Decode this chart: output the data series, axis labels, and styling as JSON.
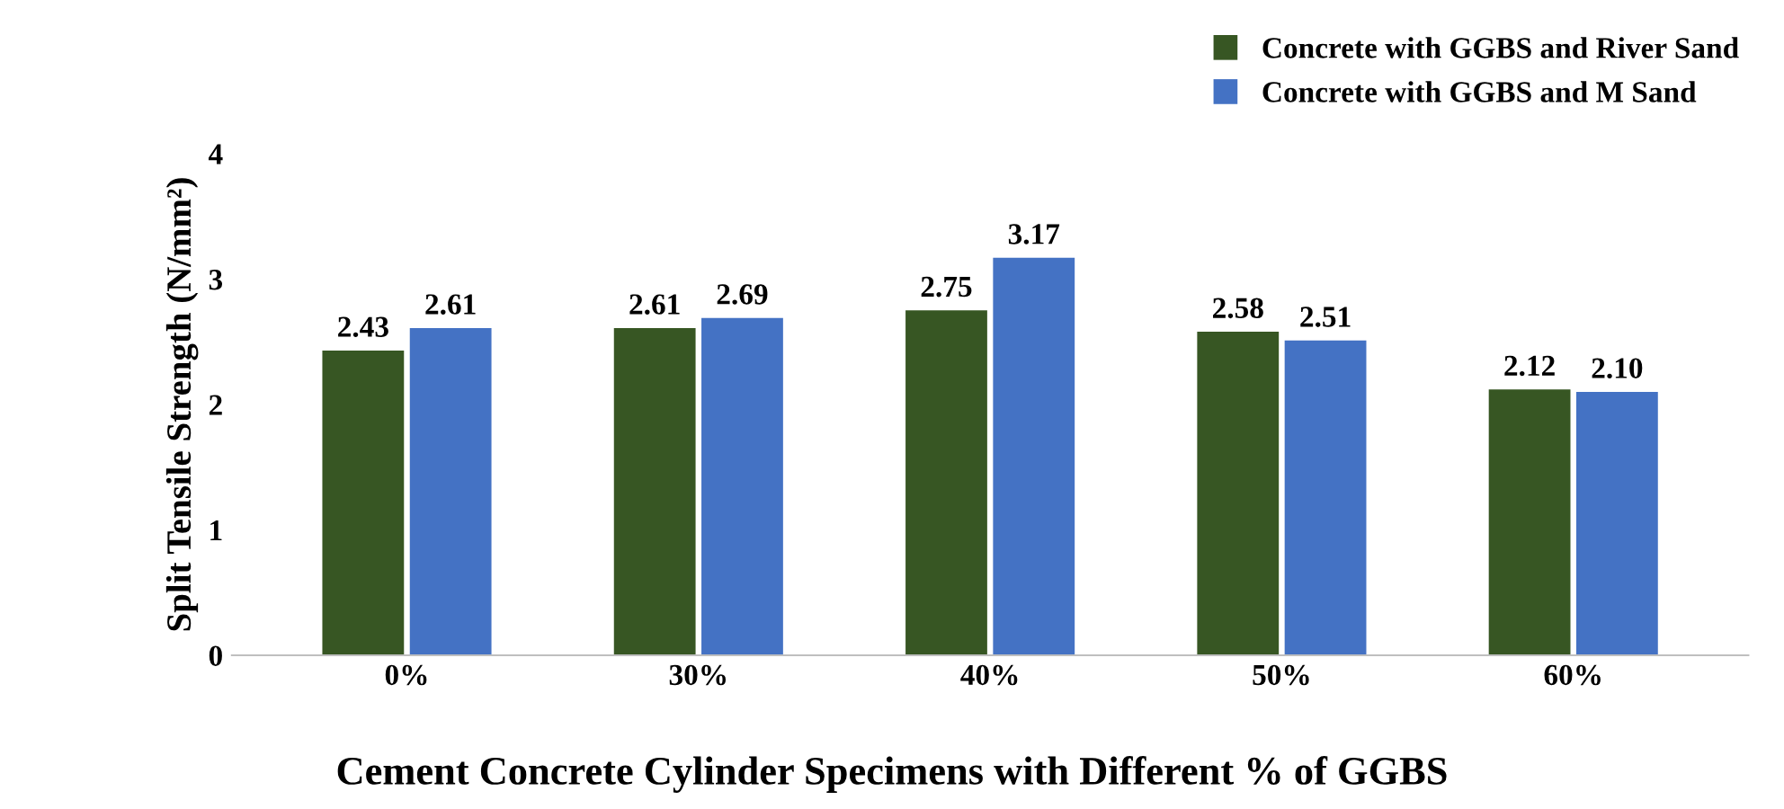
{
  "chart_data": {
    "type": "bar",
    "xlabel": "Cement Concrete Cylinder Specimens with Different % of GGBS",
    "ylabel": "Split Tensile Strength (N/mm²)",
    "categories": [
      "0%",
      "30%",
      "40%",
      "50%",
      "60%"
    ],
    "series": [
      {
        "name": "Concrete with GGBS and River Sand",
        "color": "#375623",
        "values": [
          2.43,
          2.61,
          2.75,
          2.58,
          2.12
        ],
        "value_labels": [
          "2.43",
          "2.61",
          "2.75",
          "2.58",
          "2.12"
        ]
      },
      {
        "name": "Concrete with GGBS and M Sand",
        "color": "#4472c4",
        "values": [
          2.61,
          2.69,
          3.17,
          2.51,
          2.1
        ],
        "value_labels": [
          "2.61",
          "2.69",
          "3.17",
          "2.51",
          "2.10"
        ]
      }
    ],
    "ylim": [
      0,
      4
    ],
    "yticks": [
      0,
      1,
      2,
      3,
      4
    ],
    "grid": false,
    "legend": "top right"
  }
}
